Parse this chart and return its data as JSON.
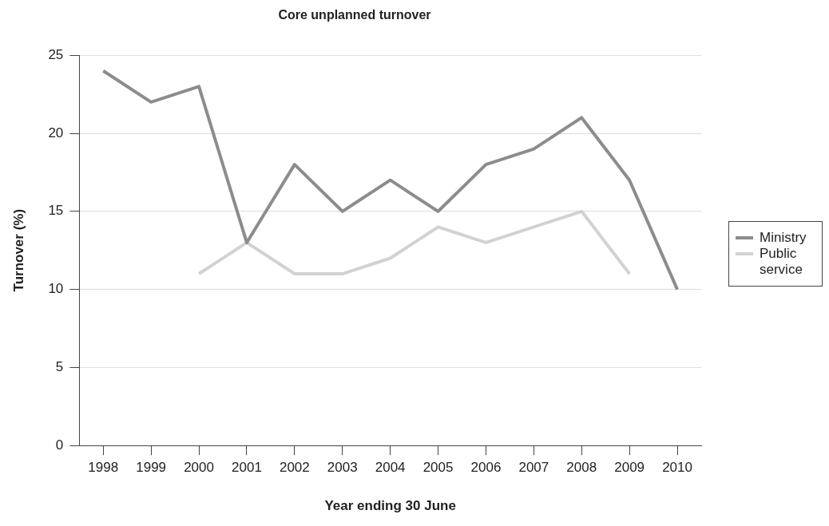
{
  "chart_data": {
    "type": "line",
    "title": "Core unplanned turnover",
    "xlabel": "Year ending 30 June",
    "ylabel": "Turnover (%)",
    "categories": [
      "1998",
      "1999",
      "2000",
      "2001",
      "2002",
      "2003",
      "2004",
      "2005",
      "2006",
      "2007",
      "2008",
      "2009",
      "2010"
    ],
    "series": [
      {
        "name": "Ministry",
        "color": "#8c8c8c",
        "values": [
          24,
          22,
          23,
          13,
          18,
          15,
          17,
          15,
          18,
          19,
          21,
          17,
          10
        ]
      },
      {
        "name": "Public service",
        "color": "#d2d2d2",
        "values": [
          null,
          null,
          11,
          13,
          11,
          11,
          12,
          14,
          13,
          14,
          15,
          11,
          null
        ]
      }
    ],
    "ylim": [
      0,
      25
    ],
    "yticks": [
      0,
      5,
      10,
      15,
      20,
      25
    ],
    "grid": "y",
    "legend": "right",
    "marker": "none",
    "line_style": "solid"
  }
}
